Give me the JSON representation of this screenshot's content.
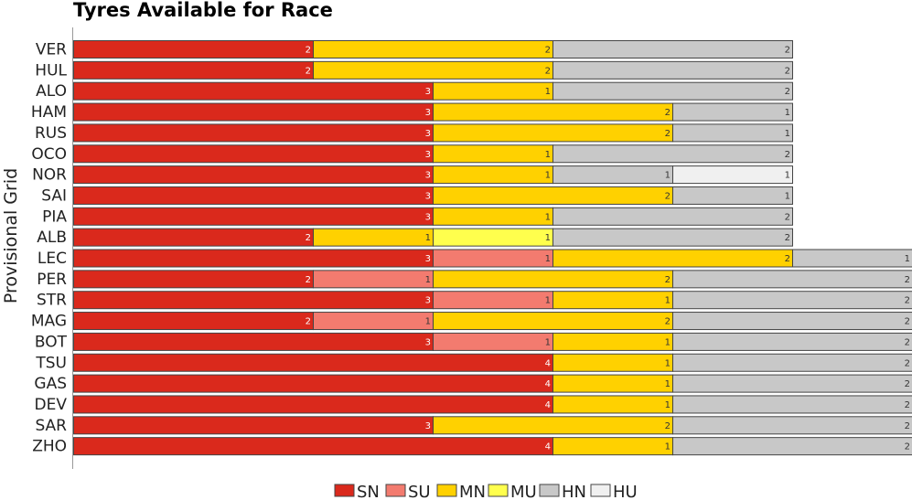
{
  "chart_data": {
    "type": "bar",
    "orientation": "horizontal",
    "stacked": true,
    "title": "Tyres Available for Race",
    "ylabel": "Provisional Grid",
    "xlabel": "",
    "grid": false,
    "legend_position": "bottom-center",
    "colors": {
      "SN": "#da291c",
      "SU": "#f37b6f",
      "MN": "#ffd100",
      "MU": "#ffff4d",
      "HN": "#c8c8c8",
      "HU": "#f0f0f0"
    },
    "legend": [
      "SN",
      "SU",
      "MN",
      "MU",
      "HN",
      "HU"
    ],
    "categories": [
      "VER",
      "HUL",
      "ALO",
      "HAM",
      "RUS",
      "OCO",
      "NOR",
      "SAI",
      "PIA",
      "ALB",
      "LEC",
      "PER",
      "STR",
      "MAG",
      "BOT",
      "TSU",
      "GAS",
      "DEV",
      "SAR",
      "ZHO"
    ],
    "bars": [
      [
        [
          "SN",
          2
        ],
        [
          "MN",
          2
        ],
        [
          "HN",
          2
        ]
      ],
      [
        [
          "SN",
          2
        ],
        [
          "MN",
          2
        ],
        [
          "HN",
          2
        ]
      ],
      [
        [
          "SN",
          3
        ],
        [
          "MN",
          1
        ],
        [
          "HN",
          2
        ]
      ],
      [
        [
          "SN",
          3
        ],
        [
          "MN",
          2
        ],
        [
          "HN",
          1
        ]
      ],
      [
        [
          "SN",
          3
        ],
        [
          "MN",
          2
        ],
        [
          "HN",
          1
        ]
      ],
      [
        [
          "SN",
          3
        ],
        [
          "MN",
          1
        ],
        [
          "HN",
          2
        ]
      ],
      [
        [
          "SN",
          3
        ],
        [
          "MN",
          1
        ],
        [
          "HN",
          1
        ],
        [
          "HU",
          1
        ]
      ],
      [
        [
          "SN",
          3
        ],
        [
          "MN",
          2
        ],
        [
          "HN",
          1
        ]
      ],
      [
        [
          "SN",
          3
        ],
        [
          "MN",
          1
        ],
        [
          "HN",
          2
        ]
      ],
      [
        [
          "SN",
          2
        ],
        [
          "MN",
          1
        ],
        [
          "MU",
          1
        ],
        [
          "HN",
          2
        ]
      ],
      [
        [
          "SN",
          3
        ],
        [
          "SU",
          1
        ],
        [
          "MN",
          2
        ],
        [
          "HN",
          1
        ]
      ],
      [
        [
          "SN",
          2
        ],
        [
          "SU",
          1
        ],
        [
          "MN",
          2
        ],
        [
          "HN",
          2
        ]
      ],
      [
        [
          "SN",
          3
        ],
        [
          "SU",
          1
        ],
        [
          "MN",
          1
        ],
        [
          "HN",
          2
        ]
      ],
      [
        [
          "SN",
          2
        ],
        [
          "SU",
          1
        ],
        [
          "MN",
          2
        ],
        [
          "HN",
          2
        ]
      ],
      [
        [
          "SN",
          3
        ],
        [
          "SU",
          1
        ],
        [
          "MN",
          1
        ],
        [
          "HN",
          2
        ]
      ],
      [
        [
          "SN",
          4
        ],
        [
          "MN",
          1
        ],
        [
          "HN",
          2
        ]
      ],
      [
        [
          "SN",
          4
        ],
        [
          "MN",
          1
        ],
        [
          "HN",
          2
        ]
      ],
      [
        [
          "SN",
          4
        ],
        [
          "MN",
          1
        ],
        [
          "HN",
          2
        ]
      ],
      [
        [
          "SN",
          3
        ],
        [
          "MN",
          2
        ],
        [
          "HN",
          2
        ]
      ],
      [
        [
          "SN",
          4
        ],
        [
          "MN",
          1
        ],
        [
          "HN",
          2
        ]
      ]
    ],
    "xlim": [
      0,
      7
    ]
  }
}
